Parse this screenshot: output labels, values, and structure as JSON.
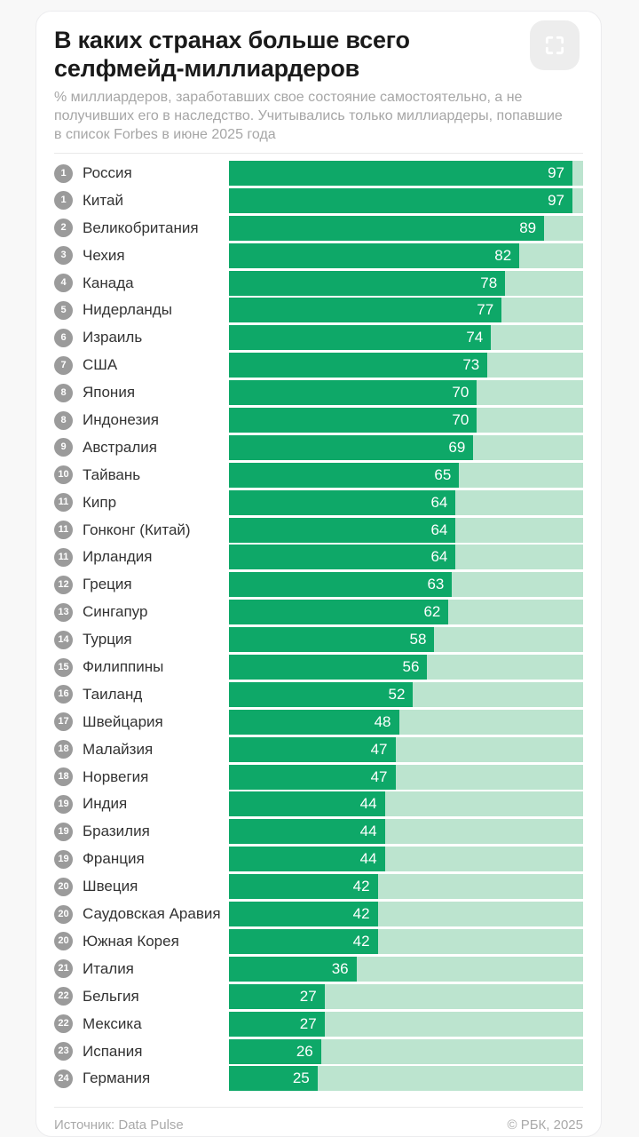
{
  "header": {
    "title": "В каких странах больше всего селфмейд-миллиардеров",
    "subtitle": "% миллиардеров, заработавших свое состояние самостоятельно, а не получивших его в наследство. Учитывались только миллиардеры, попавшие в список Forbes в июне 2025 года"
  },
  "chart_data": {
    "type": "bar",
    "orientation": "horizontal",
    "unit": "%",
    "xlim": [
      0,
      100
    ],
    "rows": [
      {
        "rank": "1",
        "country": "Россия",
        "value": 97
      },
      {
        "rank": "1",
        "country": "Китай",
        "value": 97
      },
      {
        "rank": "2",
        "country": "Великобритания",
        "value": 89
      },
      {
        "rank": "3",
        "country": "Чехия",
        "value": 82
      },
      {
        "rank": "4",
        "country": "Канада",
        "value": 78
      },
      {
        "rank": "5",
        "country": "Нидерланды",
        "value": 77
      },
      {
        "rank": "6",
        "country": "Израиль",
        "value": 74
      },
      {
        "rank": "7",
        "country": "США",
        "value": 73
      },
      {
        "rank": "8",
        "country": "Япония",
        "value": 70
      },
      {
        "rank": "8",
        "country": "Индонезия",
        "value": 70
      },
      {
        "rank": "9",
        "country": "Австралия",
        "value": 69
      },
      {
        "rank": "10",
        "country": "Тайвань",
        "value": 65
      },
      {
        "rank": "11",
        "country": "Кипр",
        "value": 64
      },
      {
        "rank": "11",
        "country": "Гонконг (Китай)",
        "value": 64
      },
      {
        "rank": "11",
        "country": "Ирландия",
        "value": 64
      },
      {
        "rank": "12",
        "country": "Греция",
        "value": 63
      },
      {
        "rank": "13",
        "country": "Сингапур",
        "value": 62
      },
      {
        "rank": "14",
        "country": "Турция",
        "value": 58
      },
      {
        "rank": "15",
        "country": "Филиппины",
        "value": 56
      },
      {
        "rank": "16",
        "country": "Таиланд",
        "value": 52
      },
      {
        "rank": "17",
        "country": "Швейцария",
        "value": 48
      },
      {
        "rank": "18",
        "country": "Малайзия",
        "value": 47
      },
      {
        "rank": "18",
        "country": "Норвегия",
        "value": 47
      },
      {
        "rank": "19",
        "country": "Индия",
        "value": 44
      },
      {
        "rank": "19",
        "country": "Бразилия",
        "value": 44
      },
      {
        "rank": "19",
        "country": "Франция",
        "value": 44
      },
      {
        "rank": "20",
        "country": "Швеция",
        "value": 42
      },
      {
        "rank": "20",
        "country": "Саудовская Аравия",
        "value": 42
      },
      {
        "rank": "20",
        "country": "Южная Корея",
        "value": 42
      },
      {
        "rank": "21",
        "country": "Италия",
        "value": 36
      },
      {
        "rank": "22",
        "country": "Бельгия",
        "value": 27
      },
      {
        "rank": "22",
        "country": "Мексика",
        "value": 27
      },
      {
        "rank": "23",
        "country": "Испания",
        "value": 26
      },
      {
        "rank": "24",
        "country": "Германия",
        "value": 25
      }
    ]
  },
  "footer": {
    "source": "Источник: Data Pulse",
    "copyright": "© РБК, 2025"
  },
  "icons": {
    "fullscreen": "expand-corners-icon"
  },
  "colors": {
    "bar": "#0ea868",
    "track": "#bce4cf",
    "badge": "#9b9b9b",
    "value_text": "#ffffff",
    "button_bg": "#ededed"
  }
}
